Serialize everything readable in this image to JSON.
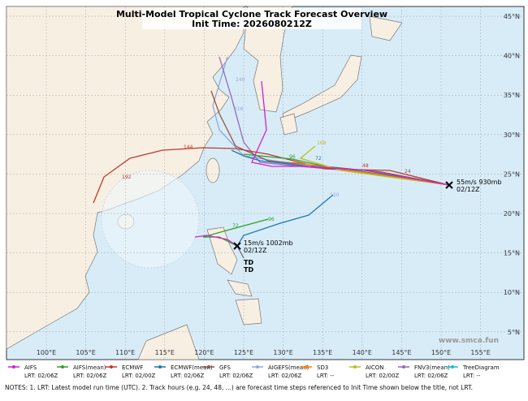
{
  "header": {
    "title": "Multi-Model Tropical Cyclone Track Forecast Overview",
    "subtitle": "Init Time: 2026080212Z"
  },
  "map": {
    "lat_labels": [
      "45°N",
      "40°N",
      "35°N",
      "30°N",
      "25°N",
      "20°N",
      "15°N",
      "10°N",
      "5°N"
    ],
    "lon_labels": [
      "100°E",
      "105°E",
      "110°E",
      "115°E",
      "120°E",
      "125°E",
      "130°E",
      "135°E",
      "140°E",
      "145°E",
      "150°E",
      "155°E"
    ],
    "annotations": [
      "55m/s 930mb",
      "02/12Z",
      "15m/s 1002mb",
      "02/12Z",
      "TD",
      "TD"
    ],
    "track_labels": [
      "120",
      "96",
      "72",
      "48",
      "24",
      "144",
      "192",
      "168",
      "240",
      "216",
      "72",
      "96"
    ],
    "watermark": "www.smca.fun"
  },
  "legend": [
    {
      "name": "AIFS",
      "lrt": "LRT: 02/06Z",
      "color": "#d020d0"
    },
    {
      "name": "AIFS(mean)",
      "lrt": "LRT: 02/06Z",
      "color": "#2ca02c"
    },
    {
      "name": "ECMWF",
      "lrt": "LRT: 02/00Z",
      "color": "#c0392b"
    },
    {
      "name": "ECMWF(mean)",
      "lrt": "LRT: 02/06Z",
      "color": "#1f77b4"
    },
    {
      "name": "GFS",
      "lrt": "LRT: 02/06Z",
      "color": "#8c564b"
    },
    {
      "name": "AIGEFS(mean)",
      "lrt": "LRT: 02/06Z",
      "color": "#8fa8e0"
    },
    {
      "name": "SD3",
      "lrt": "LRT: --",
      "color": "#ff7f0e"
    },
    {
      "name": "AICON",
      "lrt": "LRT: 02/00Z",
      "color": "#bcbd22"
    },
    {
      "name": "FNV3(mean)",
      "lrt": "LRT: 02/06Z",
      "color": "#9467bd"
    },
    {
      "name": "TreeDiagram",
      "lrt": "LRT: --",
      "color": "#17becf"
    }
  ],
  "notes": "NOTES: 1. LRT: Latest model run time (UTC).  2. Track hours (e.g. 24, 48, ...) are forecast time steps referenced to Init Time shown below the title, not LRT."
}
